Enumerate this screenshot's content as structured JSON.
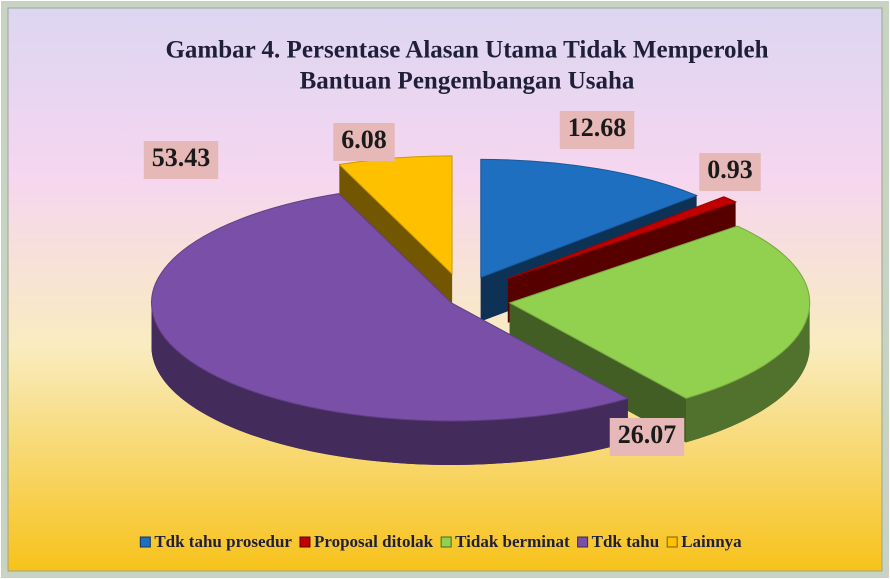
{
  "chart_data": {
    "type": "pie",
    "title": "Gambar 4. Persentase Alasan Utama Tidak Memperoleh",
    "subtitle": "Bantuan Pengembangan Usaha",
    "categories": [
      "Tdk tahu prosedur",
      "Proposal ditolak",
      "Tidak berminat",
      "Tdk tahu",
      "Lainnya"
    ],
    "values": [
      12.68,
      0.93,
      26.07,
      53.43,
      6.08
    ],
    "colors": [
      "#1f6fc0",
      "#c00000",
      "#92d050",
      "#7a4fa8",
      "#ffc000"
    ],
    "legend": "bottom"
  }
}
